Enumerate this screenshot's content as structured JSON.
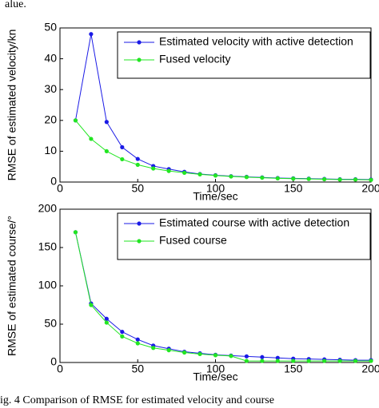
{
  "header_text": "alue.",
  "caption": "ig. 4   Comparison of RMSE for estimated velocity and course",
  "chart_data": [
    {
      "type": "line",
      "xlabel": "Time/sec",
      "ylabel": "RMSE of estimated velocity/kn",
      "x": [
        10,
        20,
        30,
        40,
        50,
        60,
        70,
        80,
        90,
        100,
        110,
        120,
        130,
        140,
        150,
        160,
        170,
        180,
        190,
        200
      ],
      "xlim": [
        0,
        200
      ],
      "xticks": [
        0,
        50,
        100,
        150,
        200
      ],
      "ylim": [
        0,
        50
      ],
      "yticks": [
        0,
        10,
        20,
        30,
        40,
        50
      ],
      "grid": false,
      "legend": "upper right",
      "series": [
        {
          "name": "Estimated velocity with active detection",
          "color": "#1a1ae6",
          "values": [
            20,
            48,
            19.5,
            11.3,
            7.5,
            5.2,
            4.2,
            3.3,
            2.6,
            2.2,
            1.9,
            1.7,
            1.5,
            1.3,
            1.2,
            1.1,
            1.0,
            0.9,
            0.9,
            0.8
          ]
        },
        {
          "name": "Fused velocity",
          "color": "#22e622",
          "values": [
            20,
            14,
            10,
            7.4,
            5.6,
            4.4,
            3.6,
            3.0,
            2.5,
            2.1,
            1.8,
            1.6,
            1.4,
            1.2,
            1.1,
            1.0,
            0.9,
            0.8,
            0.8,
            0.7
          ]
        }
      ]
    },
    {
      "type": "line",
      "xlabel": "Time/sec",
      "ylabel": "RMSE of estimated course/°",
      "x": [
        10,
        20,
        30,
        40,
        50,
        60,
        70,
        80,
        90,
        100,
        110,
        120,
        130,
        140,
        150,
        160,
        170,
        180,
        190,
        200
      ],
      "xlim": [
        0,
        200
      ],
      "xticks": [
        0,
        50,
        100,
        150,
        200
      ],
      "ylim": [
        0,
        200
      ],
      "yticks": [
        0,
        50,
        100,
        150,
        200
      ],
      "grid": false,
      "legend": "upper right",
      "series": [
        {
          "name": "Estimated course with active detection",
          "color": "#1a1ae6",
          "values": [
            170,
            77,
            57,
            40,
            30,
            22,
            18,
            14,
            12,
            10,
            9,
            8,
            7,
            6,
            5,
            4.5,
            4,
            3.5,
            3,
            3
          ]
        },
        {
          "name": "Fused course",
          "color": "#22e622",
          "values": [
            170,
            75,
            52,
            34,
            25,
            19,
            16,
            13,
            11,
            9.5,
            8.5,
            2,
            2,
            2,
            2,
            2,
            2,
            2,
            2,
            2
          ]
        }
      ]
    }
  ]
}
